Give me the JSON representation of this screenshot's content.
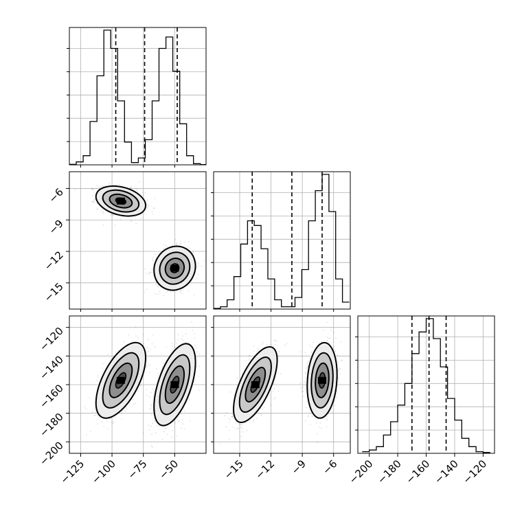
{
  "chart_data": {
    "type": "corner",
    "grid": true,
    "parameters": [
      {
        "id": "p0",
        "range": [
          -134,
          -25
        ],
        "ticks": [
          -125,
          -100,
          -75,
          -50
        ]
      },
      {
        "id": "p1",
        "range": [
          -17.5,
          -4.4
        ],
        "ticks": [
          -15,
          -12,
          -9,
          -6
        ]
      },
      {
        "id": "p2",
        "range": [
          -208,
          -112
        ],
        "ticks": [
          -200,
          -180,
          -160,
          -140,
          -120
        ]
      }
    ],
    "histograms": [
      {
        "param": 0,
        "bin_edges": [
          -134,
          -128.5,
          -123,
          -117.5,
          -112,
          -106.5,
          -101,
          -95.5,
          -90,
          -84.5,
          -79,
          -73.5,
          -68,
          -62.5,
          -57,
          -51.5,
          -46,
          -40.5,
          -35,
          -29.5,
          -25
        ],
        "counts": [
          0.2,
          1.3,
          4,
          19,
          39,
          59,
          51,
          28,
          10,
          1,
          3,
          11,
          28,
          51,
          56,
          41,
          18,
          4,
          0.5,
          0.1
        ],
        "quantiles": [
          -97,
          -74,
          -48
        ]
      },
      {
        "param": 1,
        "bin_edges": [
          -17.5,
          -16.85,
          -16.2,
          -15.55,
          -14.9,
          -14.25,
          -13.6,
          -12.95,
          -12.3,
          -11.65,
          -11,
          -10.35,
          -9.7,
          -9.05,
          -8.4,
          -7.75,
          -7.1,
          -6.45,
          -5.8,
          -5.15,
          -4.5
        ],
        "counts": [
          0.3,
          1,
          4,
          14,
          28,
          38,
          36,
          26,
          13,
          4,
          1,
          1,
          5,
          17,
          38,
          51,
          58,
          42,
          13,
          3
        ],
        "quantiles": [
          -13.8,
          -10,
          -7.1
        ]
      },
      {
        "param": 2,
        "bin_edges": [
          -205,
          -200,
          -195,
          -190,
          -185,
          -180,
          -175,
          -170,
          -165,
          -160,
          -155,
          -150,
          -145,
          -140,
          -135,
          -130,
          -125,
          -120,
          -115
        ],
        "counts": [
          1,
          2,
          4,
          11,
          19,
          29,
          42,
          60,
          73,
          81,
          69,
          52,
          33,
          20,
          9,
          4,
          1,
          0.5
        ],
        "quantiles": [
          -170,
          -158,
          -146
        ]
      }
    ],
    "joint": [
      {
        "x_param": 0,
        "y_param": 1,
        "clusters": [
          {
            "mean": [
              -93,
              -7.2
            ],
            "sd": [
              9,
              0.65
            ],
            "rho": -0.3
          },
          {
            "mean": [
              -50,
              -13.6
            ],
            "sd": [
              7.5,
              0.95
            ],
            "rho": 0.1
          }
        ]
      },
      {
        "x_param": 0,
        "y_param": 2,
        "clusters": [
          {
            "mean": [
              -93,
              -157
            ],
            "sd": [
              9,
              12
            ],
            "rho": 0.6
          },
          {
            "mean": [
              -50,
              -160
            ],
            "sd": [
              7.5,
              13
            ],
            "rho": 0.55
          }
        ]
      },
      {
        "x_param": 1,
        "y_param": 2,
        "clusters": [
          {
            "mean": [
              -13.5,
              -160
            ],
            "sd": [
              0.95,
              12
            ],
            "rho": 0.65
          },
          {
            "mean": [
              -7.1,
              -157
            ],
            "sd": [
              0.65,
              12
            ],
            "rho": 0.15
          }
        ]
      }
    ]
  }
}
